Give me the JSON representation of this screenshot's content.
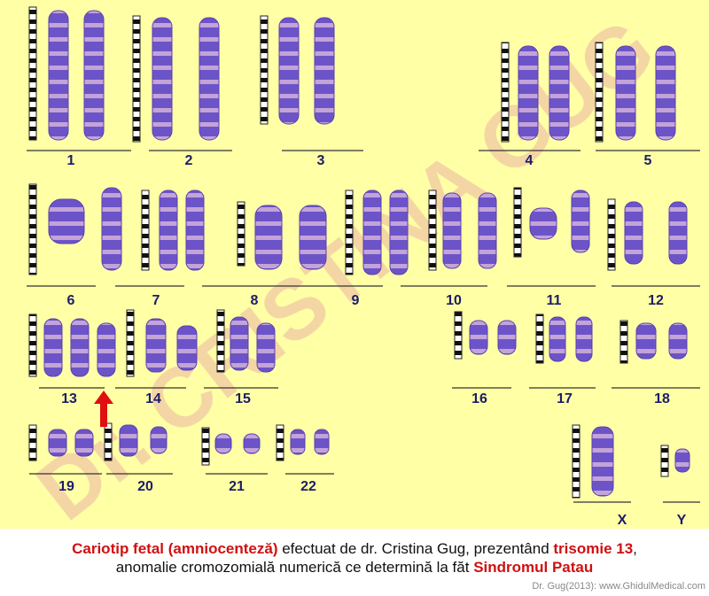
{
  "watermark": "Dr. CRISTINA GUG",
  "karyotype": {
    "labels": [
      "1",
      "2",
      "3",
      "4",
      "5",
      "6",
      "7",
      "8",
      "9",
      "10",
      "11",
      "12",
      "13",
      "14",
      "15",
      "16",
      "17",
      "18",
      "19",
      "20",
      "21",
      "22",
      "X",
      "Y"
    ]
  },
  "caption": {
    "line1": [
      "Cariotip fetal (amniocenteză)",
      " efectuat de dr. Cristina Gug, prezentând ",
      "trisomie 13",
      ","
    ],
    "line2": [
      "anomalie cromozomială numerică ce determină la făt ",
      "Sindromul Patau"
    ]
  },
  "credit": "Dr. Gug(2013): www.GhidulMedical.com"
}
